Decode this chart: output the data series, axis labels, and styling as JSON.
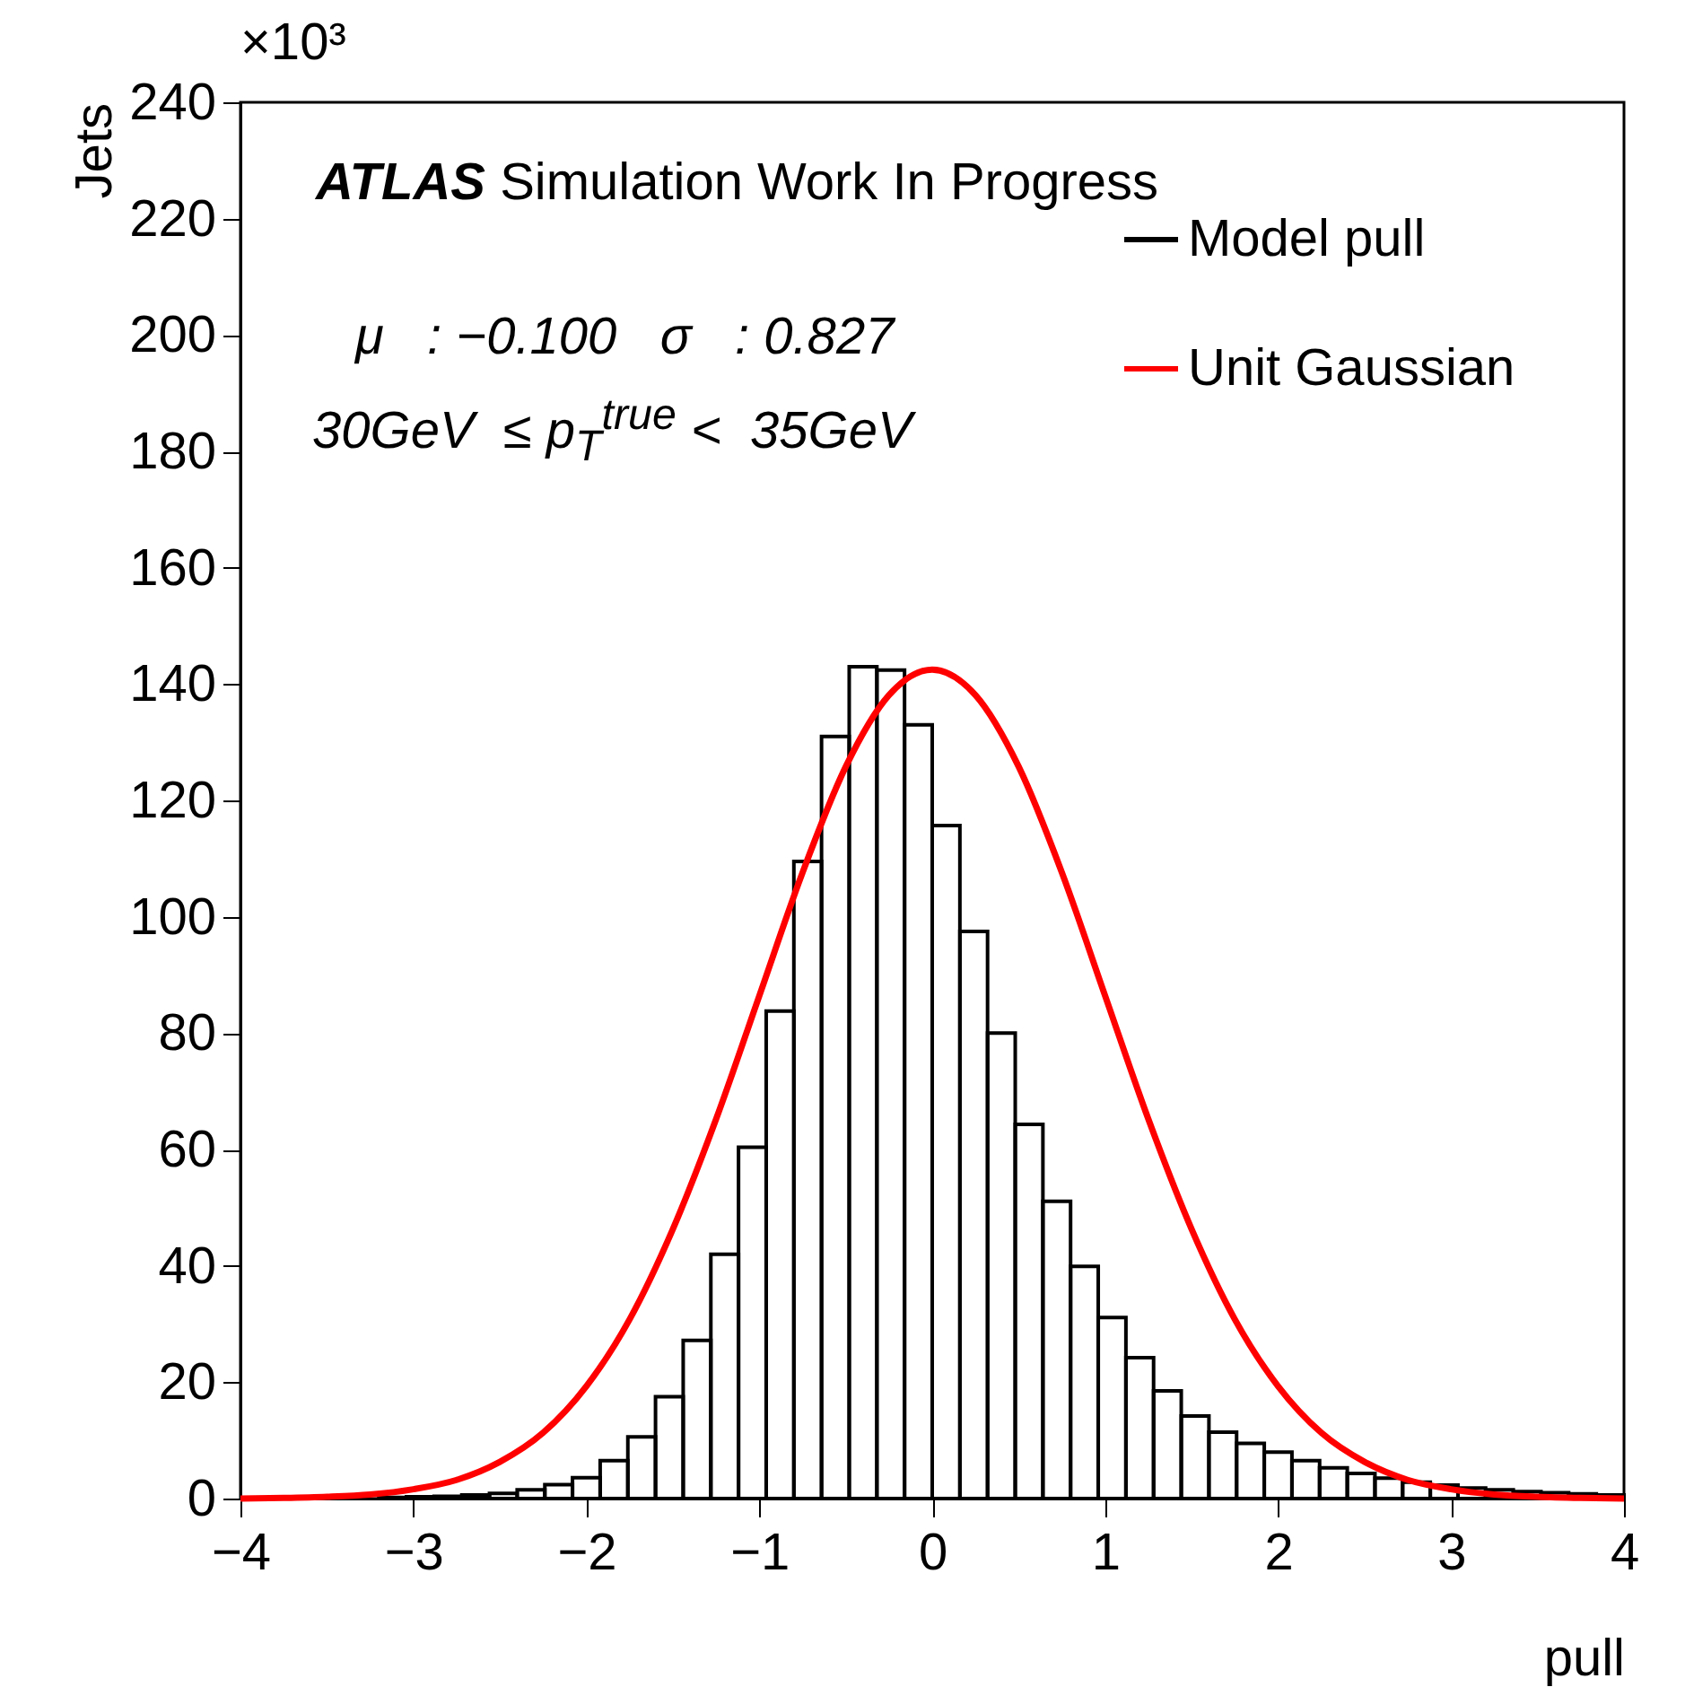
{
  "chart_data": {
    "type": "histogram",
    "xlabel": "pull",
    "ylabel": "Jets",
    "annotations": [
      "×10³",
      "ATLAS Simulation Work In Progress",
      "μ   : −0.100   σ   : 0.827",
      "30GeV  ≤ p$_{T}$$^{true}$ <  35GeV"
    ],
    "bins": [
      -4,
      -3.84,
      -3.68,
      -3.52,
      -3.36,
      -3.2,
      -3.04,
      -2.88,
      -2.72,
      -2.56,
      -2.4,
      -2.24,
      -2.08,
      -1.92,
      -1.76,
      -1.6,
      -1.44,
      -1.28,
      -1.12,
      -0.96,
      -0.8,
      -0.64,
      -0.48,
      -0.32,
      -0.16,
      0,
      0.16,
      0.32,
      0.48,
      0.64,
      0.8,
      0.96,
      1.12,
      1.28,
      1.44,
      1.6,
      1.76,
      1.92,
      2.08,
      2.24,
      2.4,
      2.56,
      2.72,
      2.88,
      3.04,
      3.2,
      3.36,
      3.52,
      3.68,
      3.84,
      4
    ],
    "series": [
      {
        "name": "Model pull",
        "color": "#000000",
        "values": [
          null,
          0.1,
          0.1,
          0.1,
          null,
          0.2,
          0.3,
          0.4,
          0.6,
          0.9,
          1.5,
          2.4,
          3.6,
          6.5,
          10.6,
          17.5,
          27.2,
          42,
          60.4,
          83.8,
          109.5,
          131,
          143,
          142.4,
          133,
          115.7,
          97.5,
          80,
          64.3,
          51.1,
          39.9,
          31.1,
          24.2,
          18.5,
          14.2,
          11.4,
          9.5,
          8,
          6.5,
          5.3,
          4.3,
          3.5,
          2.8,
          2.3,
          1.8,
          1.5,
          1.2,
          1,
          0.8,
          0.6
        ]
      },
      {
        "name": "Unit Gaussian",
        "type": "line",
        "color": "#ff0000",
        "x": [
          -4,
          -3.75,
          -3.5,
          -3.25,
          -3,
          -2.75,
          -2.5,
          -2.25,
          -2,
          -1.75,
          -1.5,
          -1.25,
          -1,
          -0.75,
          -0.5,
          -0.25,
          0,
          0.25,
          0.5,
          0.75,
          1,
          1.25,
          1.5,
          1.75,
          2,
          2.25,
          2.5,
          2.75,
          3,
          3.25,
          3.5,
          3.75,
          4
        ],
        "values": [
          0,
          0.1,
          0.3,
          0.7,
          1.6,
          3.2,
          6.3,
          11.3,
          19.3,
          30.8,
          46.3,
          65.2,
          86.4,
          107.6,
          125.8,
          138.1,
          142.5,
          138.1,
          125.8,
          107.6,
          86.4,
          65.2,
          46.3,
          30.8,
          19.3,
          11.3,
          6.3,
          3.2,
          1.6,
          0.7,
          0.3,
          0.1,
          0
        ]
      }
    ],
    "xlim": [
      -4,
      4
    ],
    "xticks": [
      -4,
      -3,
      -2,
      -1,
      0,
      1,
      2,
      3,
      4
    ],
    "ylim": [
      0,
      240
    ],
    "yticks": [
      0,
      20,
      40,
      60,
      80,
      100,
      120,
      140,
      160,
      180,
      200,
      220,
      240
    ],
    "legend": "top right",
    "grid": false
  }
}
